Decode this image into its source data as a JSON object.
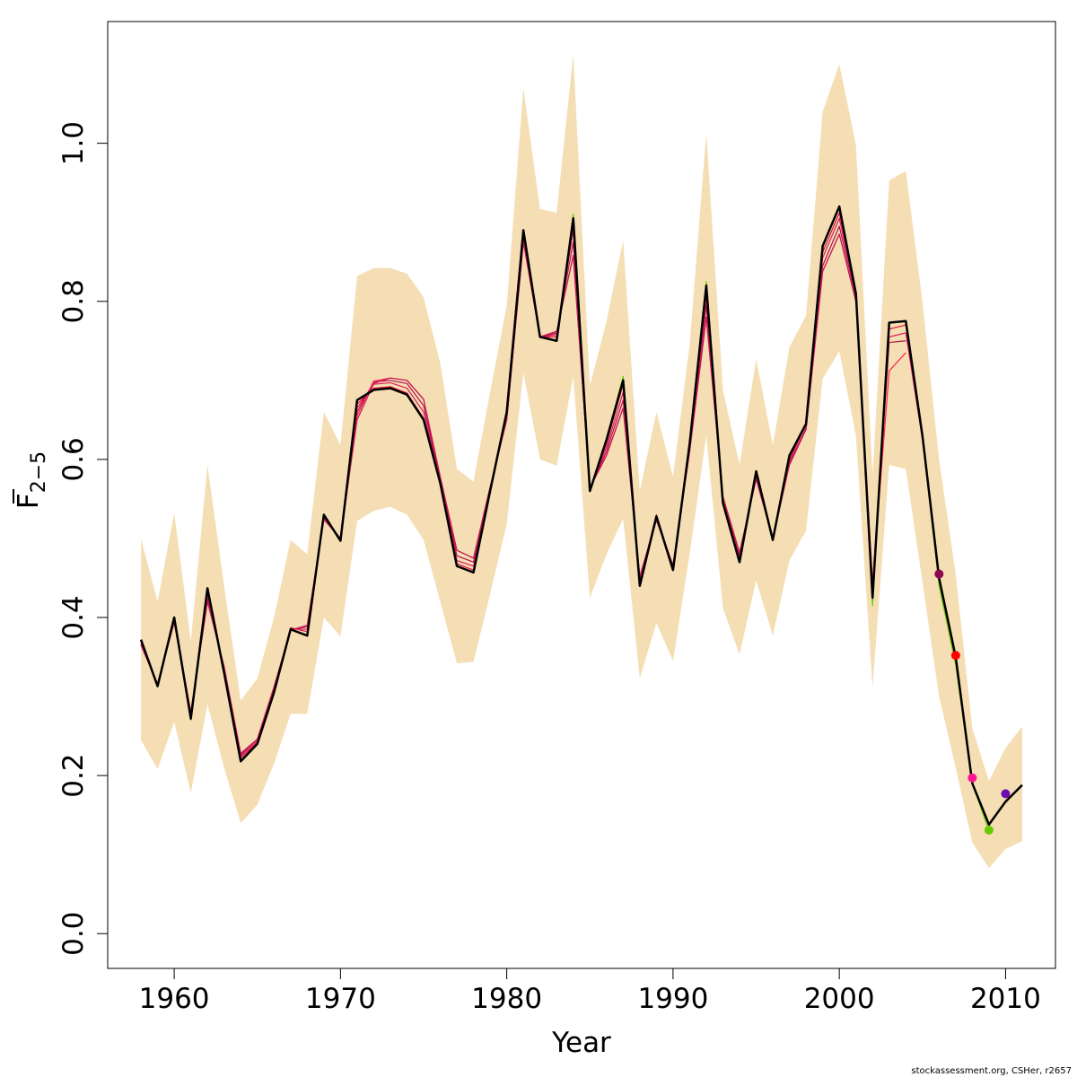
{
  "chart_data": {
    "type": "line",
    "title": "",
    "xlabel": "Year",
    "ylabel_main": "F",
    "ylabel_sub": "2−5",
    "xlim": [
      1956,
      2013
    ],
    "ylim": [
      -0.044,
      1.154
    ],
    "x_ticks": [
      1960,
      1970,
      1980,
      1990,
      2000,
      2010
    ],
    "y_ticks": [
      0.0,
      0.2,
      0.4,
      0.6,
      0.8,
      1.0
    ],
    "x_tick_labels": [
      "1960",
      "1970",
      "1980",
      "1990",
      "2000",
      "2010"
    ],
    "y_tick_labels": [
      "0.0",
      "0.2",
      "0.4",
      "0.6",
      "0.8",
      "1.0"
    ],
    "grid": false,
    "colors": {
      "band": "#f5deb3",
      "main_line": "#000000",
      "retro_lines": [
        "#e0103a",
        "#d81b60",
        "#b0124a",
        "#ff1a4a",
        "#c2185b"
      ],
      "green_line": "#66cc00"
    },
    "confidence_band": {
      "years": [
        1958,
        1959,
        1960,
        1961,
        1962,
        1963,
        1964,
        1965,
        1966,
        1967,
        1968,
        1969,
        1970,
        1971,
        1972,
        1973,
        1974,
        1975,
        1976,
        1977,
        1978,
        1979,
        1980,
        1981,
        1982,
        1983,
        1984,
        1985,
        1986,
        1987,
        1988,
        1989,
        1990,
        1991,
        1992,
        1993,
        1994,
        1995,
        1996,
        1997,
        1998,
        1999,
        2000,
        2001,
        2002,
        2003,
        2004,
        2005,
        2006,
        2007,
        2008,
        2009,
        2010,
        2011
      ],
      "lower": [
        0.245,
        0.208,
        0.268,
        0.178,
        0.29,
        0.21,
        0.14,
        0.163,
        0.215,
        0.278,
        0.278,
        0.4,
        0.376,
        0.522,
        0.535,
        0.54,
        0.53,
        0.498,
        0.42,
        0.342,
        0.344,
        0.43,
        0.518,
        0.71,
        0.6,
        0.592,
        0.705,
        0.425,
        0.48,
        0.525,
        0.323,
        0.393,
        0.345,
        0.48,
        0.63,
        0.412,
        0.353,
        0.447,
        0.377,
        0.472,
        0.51,
        0.702,
        0.737,
        0.63,
        0.312,
        0.593,
        0.588,
        0.445,
        0.3,
        0.21,
        0.115,
        0.083,
        0.107,
        0.117
      ],
      "upper": [
        0.5,
        0.42,
        0.532,
        0.37,
        0.593,
        0.44,
        0.295,
        0.323,
        0.4,
        0.498,
        0.48,
        0.66,
        0.618,
        0.832,
        0.842,
        0.842,
        0.835,
        0.805,
        0.722,
        0.588,
        0.572,
        0.685,
        0.795,
        1.07,
        0.917,
        0.912,
        1.112,
        0.693,
        0.775,
        0.877,
        0.56,
        0.66,
        0.578,
        0.745,
        1.013,
        0.688,
        0.593,
        0.727,
        0.618,
        0.742,
        0.782,
        1.04,
        1.1,
        0.998,
        0.58,
        0.953,
        0.965,
        0.8,
        0.6,
        0.455,
        0.26,
        0.193,
        0.235,
        0.262
      ]
    },
    "series": [
      {
        "values": [
          0.372,
          0.313,
          0.4,
          0.272,
          0.437,
          0.33,
          0.218,
          0.24,
          0.305,
          0.385,
          0.377,
          0.53,
          0.497,
          0.675,
          0.688,
          0.69,
          0.682,
          0.65,
          0.57,
          0.465,
          0.457,
          0.56,
          0.66,
          0.89,
          0.755,
          0.75,
          0.905,
          0.56,
          0.625,
          0.7,
          0.44,
          0.528,
          0.46,
          0.62,
          0.82,
          0.545,
          0.47,
          0.585,
          0.498,
          0.605,
          0.645,
          0.87,
          0.92,
          0.81,
          0.425,
          0.773,
          0.775,
          0.63,
          0.45,
          0.35,
          0.19,
          0.138,
          0.167,
          0.188
        ],
        "start": 1958
      },
      {
        "values": [
          0.37,
          0.315,
          0.398,
          0.274,
          0.432,
          0.332,
          0.222,
          0.242,
          0.308,
          0.387,
          0.382,
          0.528,
          0.498,
          0.67,
          0.69,
          0.692,
          0.684,
          0.652,
          0.57,
          0.468,
          0.46,
          0.562,
          0.658,
          0.885,
          0.755,
          0.755,
          0.9,
          0.562,
          0.62,
          0.695,
          0.445,
          0.53,
          0.462,
          0.618,
          0.815,
          0.548,
          0.475,
          0.583,
          0.5,
          0.6,
          0.645,
          0.862,
          0.912,
          0.81,
          0.43,
          0.765,
          0.77,
          0.628,
          0.452
        ],
        "start": 1958
      },
      {
        "values": [
          0.368,
          0.315,
          0.396,
          0.276,
          0.43,
          0.335,
          0.224,
          0.244,
          0.31,
          0.386,
          0.385,
          0.526,
          0.5,
          0.665,
          0.695,
          0.697,
          0.69,
          0.66,
          0.572,
          0.472,
          0.465,
          0.562,
          0.655,
          0.882,
          0.755,
          0.758,
          0.89,
          0.562,
          0.615,
          0.685,
          0.448,
          0.528,
          0.464,
          0.615,
          0.805,
          0.55,
          0.478,
          0.58,
          0.5,
          0.598,
          0.645,
          0.855,
          0.905,
          0.808,
          0.435,
          0.755,
          0.76,
          0.625
        ],
        "start": 1958
      },
      {
        "values": [
          0.366,
          0.316,
          0.395,
          0.278,
          0.425,
          0.336,
          0.226,
          0.246,
          0.31,
          0.385,
          0.388,
          0.525,
          0.5,
          0.66,
          0.698,
          0.7,
          0.696,
          0.668,
          0.575,
          0.478,
          0.47,
          0.563,
          0.652,
          0.878,
          0.755,
          0.76,
          0.875,
          0.563,
          0.61,
          0.675,
          0.45,
          0.525,
          0.465,
          0.612,
          0.795,
          0.552,
          0.48,
          0.578,
          0.5,
          0.595,
          0.64,
          0.845,
          0.895,
          0.805,
          0.44,
          0.748,
          0.75
        ],
        "start": 1958
      },
      {
        "values": [
          0.365,
          0.316,
          0.394,
          0.28,
          0.42,
          0.338,
          0.228,
          0.246,
          0.312,
          0.384,
          0.39,
          0.524,
          0.5,
          0.655,
          0.699,
          0.703,
          0.7,
          0.676,
          0.578,
          0.485,
          0.475,
          0.565,
          0.65,
          0.875,
          0.755,
          0.762,
          0.858,
          0.564,
          0.605,
          0.665,
          0.452,
          0.523,
          0.466,
          0.61,
          0.78,
          0.553,
          0.482,
          0.575,
          0.5,
          0.593,
          0.638,
          0.838,
          0.885,
          0.8,
          0.445,
          0.712,
          0.735
        ],
        "start": 1958
      },
      {
        "values": [
          0.365,
          0.316,
          0.394,
          0.28,
          0.42,
          0.338,
          0.228,
          0.246,
          0.312,
          0.384,
          0.39,
          0.524,
          0.5,
          0.65,
          0.696,
          0.703,
          0.7,
          0.676,
          0.578,
          0.485,
          0.475,
          0.565,
          0.65,
          0.875,
          0.755,
          0.762,
          0.858,
          0.564,
          0.605,
          0.665,
          0.452,
          0.523,
          0.466,
          0.61,
          0.78,
          0.553,
          0.482,
          0.575,
          0.5,
          0.593,
          0.638,
          0.838,
          0.885,
          0.8
        ],
        "start": 1958
      },
      {
        "values": [
          0.372,
          0.313,
          0.4,
          0.27,
          0.437,
          0.33,
          0.218,
          0.24,
          0.305,
          0.385,
          0.377,
          0.53,
          0.497,
          0.675,
          0.688,
          0.69,
          0.682,
          0.65,
          0.57,
          0.465,
          0.457,
          0.56,
          0.66,
          0.89,
          0.755,
          0.75,
          0.91,
          0.56,
          0.625,
          0.705,
          0.44,
          0.528,
          0.46,
          0.62,
          0.825,
          0.545,
          0.47,
          0.585,
          0.498,
          0.605,
          0.645,
          0.87,
          0.92,
          0.81,
          0.415,
          0.773,
          0.775,
          0.63,
          0.44,
          0.34,
          0.19,
          0.13
        ],
        "start": 1958
      }
    ],
    "endpoints": [
      {
        "x": 2006,
        "y": 0.455,
        "color": "#8b0a50"
      },
      {
        "x": 2007,
        "y": 0.352,
        "color": "#ff0000"
      },
      {
        "x": 2008,
        "y": 0.197,
        "color": "#ff1493"
      },
      {
        "x": 2009,
        "y": 0.131,
        "color": "#66cc00"
      },
      {
        "x": 2010,
        "y": 0.177,
        "color": "#6a0dad"
      }
    ],
    "credit": "stockassessment.org, CSHer, r2657"
  }
}
